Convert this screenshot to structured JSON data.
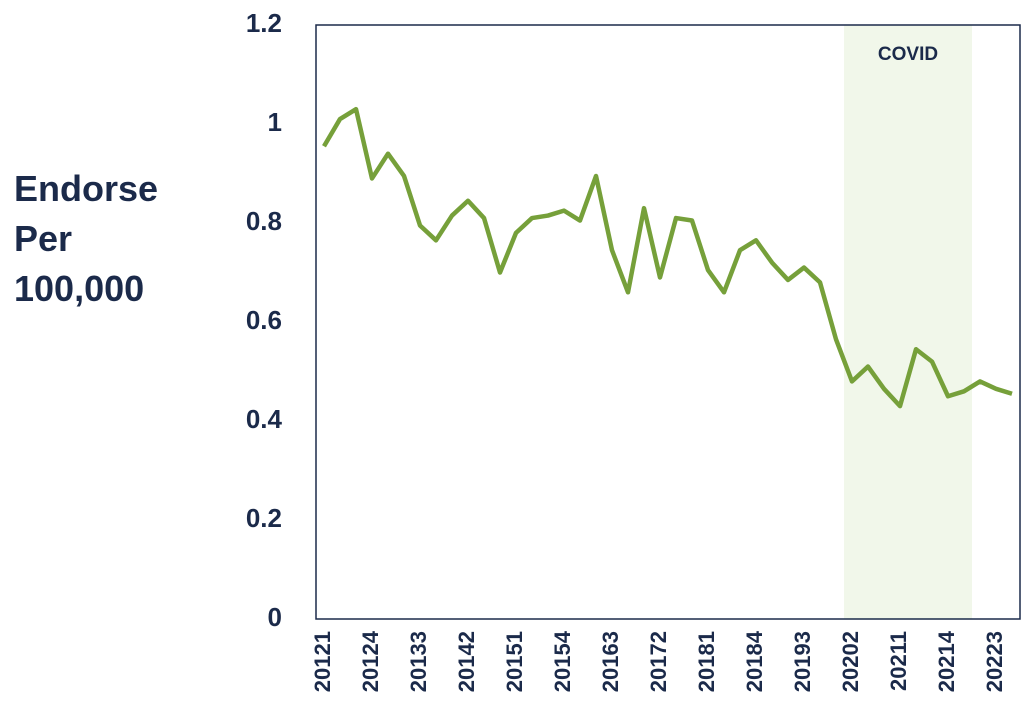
{
  "chart_data": {
    "type": "line",
    "y_label": "Endorse Per 100,000",
    "annotation": "COVID",
    "categories": [
      "20121",
      null,
      null,
      "20124",
      null,
      null,
      "20133",
      null,
      null,
      "20142",
      null,
      null,
      "20151",
      null,
      null,
      "20154",
      null,
      null,
      "20163",
      null,
      null,
      "20172",
      null,
      null,
      "20181",
      null,
      null,
      "20184",
      null,
      null,
      "20193",
      null,
      null,
      "20202",
      null,
      null,
      "20211",
      null,
      null,
      "20214",
      null,
      null,
      "20223",
      null
    ],
    "series": [
      {
        "name": "Endorse",
        "color": "#76a03a",
        "values": [
          0.955,
          1.01,
          1.03,
          0.89,
          0.94,
          0.895,
          0.795,
          0.765,
          0.815,
          0.845,
          0.81,
          0.7,
          0.78,
          0.81,
          0.815,
          0.825,
          0.805,
          0.895,
          0.745,
          0.66,
          0.83,
          0.69,
          0.81,
          0.805,
          0.705,
          0.66,
          0.745,
          0.765,
          0.72,
          0.685,
          0.71,
          0.68,
          0.565,
          0.48,
          0.51,
          0.465,
          0.43,
          0.545,
          0.52,
          0.45,
          0.46,
          0.48,
          0.465,
          0.455
        ]
      }
    ],
    "ylim": [
      0,
      1.2
    ],
    "yticks": [
      0,
      0.2,
      0.4,
      0.6,
      0.8,
      1,
      1.2
    ],
    "grid": false
  }
}
